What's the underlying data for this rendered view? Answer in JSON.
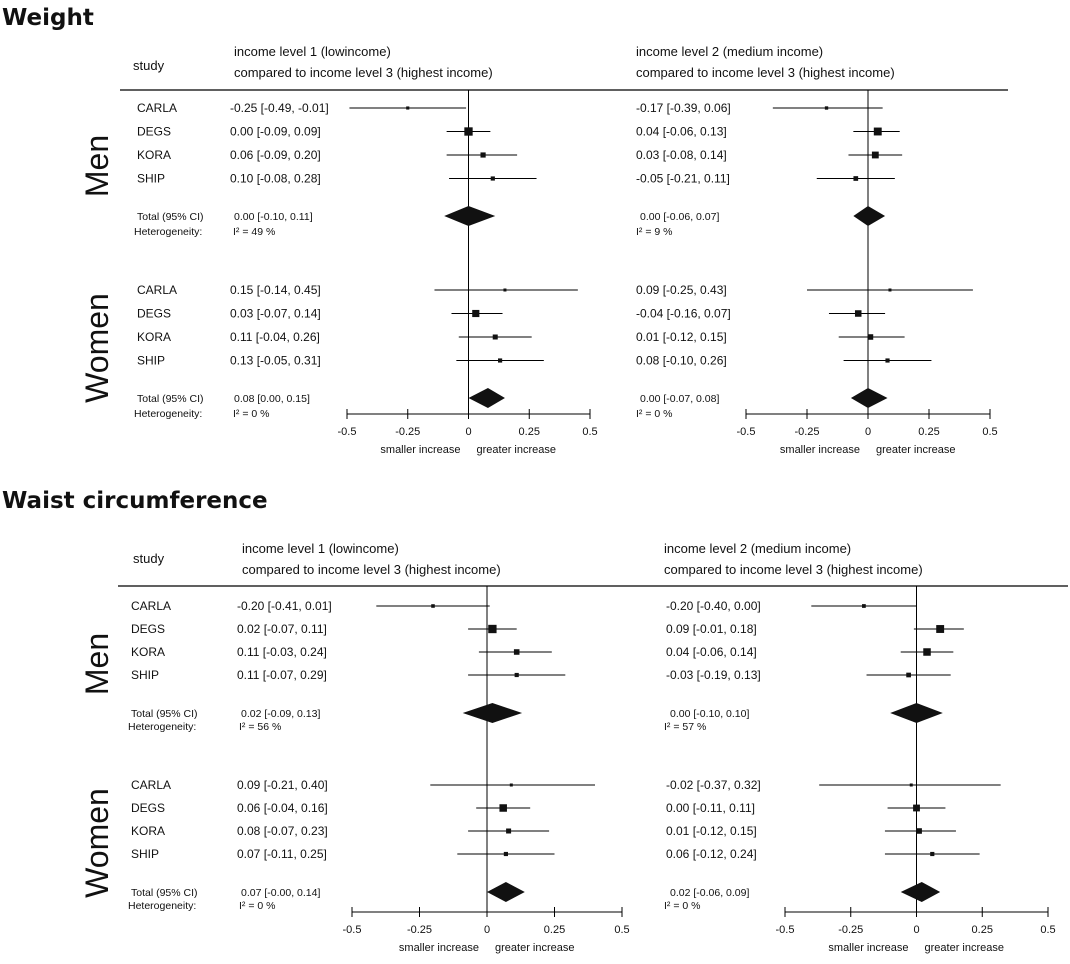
{
  "chart_data": [
    {
      "type": "forest",
      "title": "Weight",
      "study_header": "study",
      "panels": [
        {
          "title_line1": "income level 1 (lowincome)",
          "title_line2": "compared to income level 3 (highest income)"
        },
        {
          "title_line1": "income level 2 (medium income)",
          "title_line2": "compared to income level 3 (highest income)"
        }
      ],
      "axis": {
        "xlim": [
          -0.5,
          0.5
        ],
        "ticks": [
          -0.5,
          -0.25,
          0,
          0.25,
          0.5
        ],
        "tick_labels": [
          "-0.5",
          "-0.25",
          "0",
          "0.25",
          "0.5"
        ],
        "left_label": "smaller increase",
        "right_label": "greater increase"
      },
      "groups": [
        {
          "name": "Men",
          "heterogeneity_label": "Heterogeneity:",
          "studies": [
            {
              "name": "CARLA",
              "panels": [
                {
                  "est": -0.25,
                  "lo": -0.49,
                  "hi": -0.01,
                  "label": "-0.25 [-0.49, -0.01]"
                },
                {
                  "est": -0.17,
                  "lo": -0.39,
                  "hi": 0.06,
                  "label": "-0.17 [-0.39, 0.06]"
                }
              ]
            },
            {
              "name": "DEGS",
              "panels": [
                {
                  "est": 0.0,
                  "lo": -0.09,
                  "hi": 0.09,
                  "label": "0.00 [-0.09, 0.09]"
                },
                {
                  "est": 0.04,
                  "lo": -0.06,
                  "hi": 0.13,
                  "label": "0.04 [-0.06, 0.13]"
                }
              ]
            },
            {
              "name": "KORA",
              "panels": [
                {
                  "est": 0.06,
                  "lo": -0.09,
                  "hi": 0.2,
                  "label": "0.06 [-0.09, 0.20]"
                },
                {
                  "est": 0.03,
                  "lo": -0.08,
                  "hi": 0.14,
                  "label": "0.03 [-0.08, 0.14]"
                }
              ]
            },
            {
              "name": "SHIP",
              "panels": [
                {
                  "est": 0.1,
                  "lo": -0.08,
                  "hi": 0.28,
                  "label": "0.10 [-0.08, 0.28]"
                },
                {
                  "est": -0.05,
                  "lo": -0.21,
                  "hi": 0.11,
                  "label": "-0.05 [-0.21, 0.11]"
                }
              ]
            }
          ],
          "total": {
            "name": "Total (95% CI)",
            "panels": [
              {
                "est": 0.0,
                "lo": -0.1,
                "hi": 0.11,
                "label": "0.00 [-0.10, 0.11]",
                "i2": "I² = 49 %"
              },
              {
                "est": 0.0,
                "lo": -0.06,
                "hi": 0.07,
                "label": "0.00 [-0.06, 0.07]",
                "i2": "I² = 9 %"
              }
            ]
          }
        },
        {
          "name": "Women",
          "heterogeneity_label": "Heterogeneity:",
          "studies": [
            {
              "name": "CARLA",
              "panels": [
                {
                  "est": 0.15,
                  "lo": -0.14,
                  "hi": 0.45,
                  "label": "0.15 [-0.14, 0.45]"
                },
                {
                  "est": 0.09,
                  "lo": -0.25,
                  "hi": 0.43,
                  "label": "0.09 [-0.25, 0.43]"
                }
              ]
            },
            {
              "name": "DEGS",
              "panels": [
                {
                  "est": 0.03,
                  "lo": -0.07,
                  "hi": 0.14,
                  "label": "0.03 [-0.07, 0.14]"
                },
                {
                  "est": -0.04,
                  "lo": -0.16,
                  "hi": 0.07,
                  "label": "-0.04 [-0.16, 0.07]"
                }
              ]
            },
            {
              "name": "KORA",
              "panels": [
                {
                  "est": 0.11,
                  "lo": -0.04,
                  "hi": 0.26,
                  "label": "0.11 [-0.04, 0.26]"
                },
                {
                  "est": 0.01,
                  "lo": -0.12,
                  "hi": 0.15,
                  "label": "0.01 [-0.12, 0.15]"
                }
              ]
            },
            {
              "name": "SHIP",
              "panels": [
                {
                  "est": 0.13,
                  "lo": -0.05,
                  "hi": 0.31,
                  "label": "0.13 [-0.05, 0.31]"
                },
                {
                  "est": 0.08,
                  "lo": -0.1,
                  "hi": 0.26,
                  "label": "0.08 [-0.10, 0.26]"
                }
              ]
            }
          ],
          "total": {
            "name": "Total (95% CI)",
            "panels": [
              {
                "est": 0.08,
                "lo": 0.0,
                "hi": 0.15,
                "label": "0.08 [0.00, 0.15]",
                "i2": "I² = 0 %"
              },
              {
                "est": 0.0,
                "lo": -0.07,
                "hi": 0.08,
                "label": "0.00 [-0.07, 0.08]",
                "i2": "I² = 0 %"
              }
            ]
          }
        }
      ]
    },
    {
      "type": "forest",
      "title": "Waist circumference",
      "study_header": "study",
      "panels": [
        {
          "title_line1": "income level 1 (lowincome)",
          "title_line2": "compared to income level 3 (highest income)"
        },
        {
          "title_line1": "income level 2 (medium income)",
          "title_line2": "compared to income level 3 (highest income)"
        }
      ],
      "axis": {
        "xlim": [
          -0.5,
          0.5
        ],
        "ticks": [
          -0.5,
          -0.25,
          0,
          0.25,
          0.5
        ],
        "tick_labels": [
          "-0.5",
          "-0.25",
          "0",
          "0.25",
          "0.5"
        ],
        "left_label": "smaller increase",
        "right_label": "greater increase"
      },
      "groups": [
        {
          "name": "Men",
          "heterogeneity_label": "Heterogeneity:",
          "studies": [
            {
              "name": "CARLA",
              "panels": [
                {
                  "est": -0.2,
                  "lo": -0.41,
                  "hi": 0.01,
                  "label": "-0.20 [-0.41, 0.01]"
                },
                {
                  "est": -0.2,
                  "lo": -0.4,
                  "hi": 0.0,
                  "label": "-0.20 [-0.40, 0.00]"
                }
              ]
            },
            {
              "name": "DEGS",
              "panels": [
                {
                  "est": 0.02,
                  "lo": -0.07,
                  "hi": 0.11,
                  "label": "0.02 [-0.07, 0.11]"
                },
                {
                  "est": 0.09,
                  "lo": -0.01,
                  "hi": 0.18,
                  "label": "0.09 [-0.01, 0.18]"
                }
              ]
            },
            {
              "name": "KORA",
              "panels": [
                {
                  "est": 0.11,
                  "lo": -0.03,
                  "hi": 0.24,
                  "label": "0.11 [-0.03, 0.24]"
                },
                {
                  "est": 0.04,
                  "lo": -0.06,
                  "hi": 0.14,
                  "label": "0.04 [-0.06, 0.14]"
                }
              ]
            },
            {
              "name": "SHIP",
              "panels": [
                {
                  "est": 0.11,
                  "lo": -0.07,
                  "hi": 0.29,
                  "label": "0.11 [-0.07, 0.29]"
                },
                {
                  "est": -0.03,
                  "lo": -0.19,
                  "hi": 0.13,
                  "label": "-0.03 [-0.19, 0.13]"
                }
              ]
            }
          ],
          "total": {
            "name": "Total (95% CI)",
            "panels": [
              {
                "est": 0.02,
                "lo": -0.09,
                "hi": 0.13,
                "label": "0.02 [-0.09, 0.13]",
                "i2": "I² = 56 %"
              },
              {
                "est": 0.0,
                "lo": -0.1,
                "hi": 0.1,
                "label": "0.00 [-0.10, 0.10]",
                "i2": "I² = 57 %"
              }
            ]
          }
        },
        {
          "name": "Women",
          "heterogeneity_label": "Heterogeneity:",
          "studies": [
            {
              "name": "CARLA",
              "panels": [
                {
                  "est": 0.09,
                  "lo": -0.21,
                  "hi": 0.4,
                  "label": "0.09 [-0.21, 0.40]"
                },
                {
                  "est": -0.02,
                  "lo": -0.37,
                  "hi": 0.32,
                  "label": "-0.02 [-0.37, 0.32]"
                }
              ]
            },
            {
              "name": "DEGS",
              "panels": [
                {
                  "est": 0.06,
                  "lo": -0.04,
                  "hi": 0.16,
                  "label": "0.06 [-0.04, 0.16]"
                },
                {
                  "est": 0.0,
                  "lo": -0.11,
                  "hi": 0.11,
                  "label": "0.00 [-0.11, 0.11]"
                }
              ]
            },
            {
              "name": "KORA",
              "panels": [
                {
                  "est": 0.08,
                  "lo": -0.07,
                  "hi": 0.23,
                  "label": "0.08 [-0.07, 0.23]"
                },
                {
                  "est": 0.01,
                  "lo": -0.12,
                  "hi": 0.15,
                  "label": "0.01 [-0.12, 0.15]"
                }
              ]
            },
            {
              "name": "SHIP",
              "panels": [
                {
                  "est": 0.07,
                  "lo": -0.11,
                  "hi": 0.25,
                  "label": "0.07 [-0.11, 0.25]"
                },
                {
                  "est": 0.06,
                  "lo": -0.12,
                  "hi": 0.24,
                  "label": "0.06 [-0.12, 0.24]"
                }
              ]
            }
          ],
          "total": {
            "name": "Total (95% CI)",
            "panels": [
              {
                "est": 0.07,
                "lo": -0.0,
                "hi": 0.14,
                "label": "0.07 [-0.00, 0.14]",
                "i2": "I² = 0 %"
              },
              {
                "est": 0.02,
                "lo": -0.06,
                "hi": 0.09,
                "label": "0.02 [-0.06, 0.09]",
                "i2": "I² = 0 %"
              }
            ]
          }
        }
      ]
    }
  ]
}
